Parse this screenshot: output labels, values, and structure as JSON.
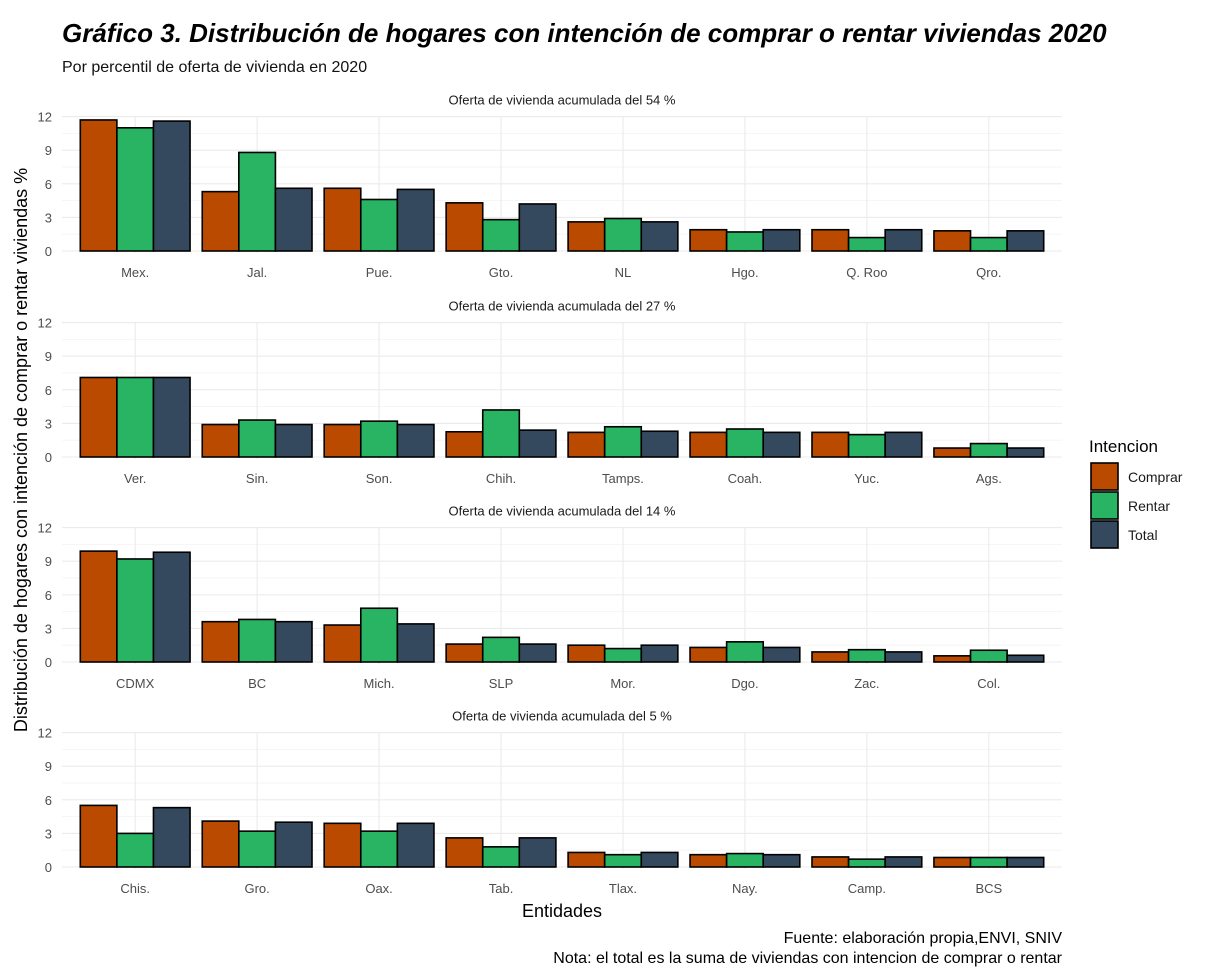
{
  "chart_data": {
    "type": "bar",
    "title": "Gráfico 3. Distribución de hogares con intención de comprar o rentar viviendas 2020",
    "subtitle": "Por percentil de oferta de vivienda en 2020",
    "xlabel": "Entidades",
    "ylabel": "Distribución de hogares con intención de comprar o rentar viviendas %",
    "ylim": [
      0,
      12
    ],
    "yticks": [
      "0",
      "3",
      "6",
      "9",
      "12"
    ],
    "grid": true,
    "legend": {
      "title": "Intencion",
      "position": "right",
      "entries": [
        {
          "name": "Comprar",
          "color": "#BA4A00"
        },
        {
          "name": "Rentar",
          "color": "#28B463"
        },
        {
          "name": "Total",
          "color": "#34495E"
        }
      ]
    },
    "caption": [
      "Fuente: elaboración propia,ENVI, SNIV",
      "Nota: el total es la suma de viviendas con intencion de comprar o rentar"
    ],
    "panels": [
      {
        "strip": "Oferta de vivienda acumulada del 54 %",
        "categories": [
          "Mex.",
          "Jal.",
          "Pue.",
          "Gto.",
          "NL",
          "Hgo.",
          "Q. Roo",
          "Qro."
        ],
        "series": [
          {
            "name": "Comprar",
            "values": [
              11.7,
              5.3,
              5.6,
              4.3,
              2.6,
              1.9,
              1.9,
              1.8
            ]
          },
          {
            "name": "Rentar",
            "values": [
              11.0,
              8.8,
              4.6,
              2.8,
              2.9,
              1.7,
              1.2,
              1.2
            ]
          },
          {
            "name": "Total",
            "values": [
              11.6,
              5.6,
              5.5,
              4.2,
              2.6,
              1.9,
              1.9,
              1.8
            ]
          }
        ]
      },
      {
        "strip": "Oferta de vivienda acumulada del 27 %",
        "categories": [
          "Ver.",
          "Sin.",
          "Son.",
          "Chih.",
          "Tamps.",
          "Coah.",
          "Yuc.",
          "Ags."
        ],
        "series": [
          {
            "name": "Comprar",
            "values": [
              7.1,
              2.9,
              2.9,
              2.25,
              2.2,
              2.2,
              2.2,
              0.8
            ]
          },
          {
            "name": "Rentar",
            "values": [
              7.1,
              3.3,
              3.2,
              4.2,
              2.7,
              2.5,
              2.0,
              1.2
            ]
          },
          {
            "name": "Total",
            "values": [
              7.1,
              2.9,
              2.9,
              2.4,
              2.3,
              2.2,
              2.2,
              0.8
            ]
          }
        ]
      },
      {
        "strip": "Oferta de vivienda acumulada del 14 %",
        "categories": [
          "CDMX",
          "BC",
          "Mich.",
          "SLP",
          "Mor.",
          "Dgo.",
          "Zac.",
          "Col."
        ],
        "series": [
          {
            "name": "Comprar",
            "values": [
              9.9,
              3.6,
              3.3,
              1.6,
              1.5,
              1.3,
              0.9,
              0.55
            ]
          },
          {
            "name": "Rentar",
            "values": [
              9.2,
              3.8,
              4.8,
              2.2,
              1.2,
              1.8,
              1.1,
              1.05
            ]
          },
          {
            "name": "Total",
            "values": [
              9.8,
              3.6,
              3.4,
              1.6,
              1.5,
              1.3,
              0.9,
              0.6
            ]
          }
        ]
      },
      {
        "strip": "Oferta de vivienda acumulada del  5 %",
        "categories": [
          "Chis.",
          "Gro.",
          "Oax.",
          "Tab.",
          "Tlax.",
          "Nay.",
          "Camp.",
          "BCS"
        ],
        "series": [
          {
            "name": "Comprar",
            "values": [
              5.5,
              4.1,
              3.9,
              2.6,
              1.3,
              1.1,
              0.9,
              0.85
            ]
          },
          {
            "name": "Rentar",
            "values": [
              3.0,
              3.2,
              3.2,
              1.8,
              1.1,
              1.2,
              0.7,
              0.85
            ]
          },
          {
            "name": "Total",
            "values": [
              5.3,
              4.0,
              3.9,
              2.6,
              1.3,
              1.1,
              0.9,
              0.85
            ]
          }
        ]
      }
    ]
  }
}
